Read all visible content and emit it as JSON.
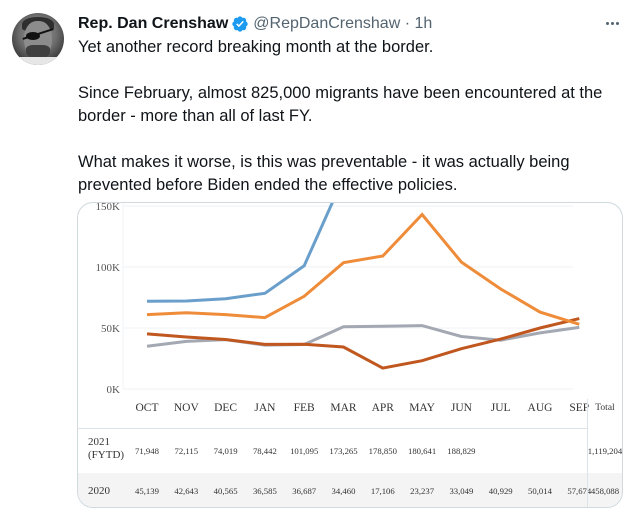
{
  "tweet": {
    "author_name": "Rep. Dan Crenshaw",
    "verified_icon": "verified-badge-icon",
    "handle": "@RepDanCrenshaw",
    "separator": "·",
    "time": "1h",
    "more_icon": "more-options-icon",
    "paragraphs": [
      "Yet another record breaking month at the border.",
      "Since February, almost 825,000 migrants have been encountered at the",
      "border - more than all of last FY.",
      "What makes it worse, is this was preventable - it was actually being",
      "prevented before Biden ended the effective policies."
    ]
  },
  "colors": {
    "verified": "#1d9bf0",
    "series_2021": "#6a9fcb",
    "series_orange": "#ee8c3a",
    "series_2020": "#c0571f",
    "series_gray": "#a3a8b3"
  },
  "chart_data": {
    "type": "line",
    "title": "",
    "xlabel": "",
    "ylabel": "",
    "categories": [
      "OCT",
      "NOV",
      "DEC",
      "JAN",
      "FEB",
      "MAR",
      "APR",
      "MAY",
      "JUN",
      "JUL",
      "AUG",
      "SEP"
    ],
    "y_ticks": [
      "0K",
      "50K",
      "100K",
      "150K"
    ],
    "y_tick_values": [
      0,
      50000,
      100000,
      150000
    ],
    "ylim": [
      0,
      150000
    ],
    "grid": true,
    "series": [
      {
        "name": "2021 (FYTD)",
        "color_key": "series_2021",
        "values": [
          71948,
          72115,
          74019,
          78442,
          101095,
          173265,
          178850,
          180641,
          188829,
          null,
          null,
          null
        ]
      },
      {
        "name": "Unlabeled orange series",
        "color_key": "series_orange",
        "values": [
          61000,
          62500,
          61000,
          58500,
          76000,
          103500,
          109000,
          143000,
          104000,
          82000,
          63000,
          53000
        ]
      },
      {
        "name": "2020",
        "color_key": "series_2020",
        "values": [
          45139,
          42643,
          40565,
          36585,
          36687,
          34460,
          17106,
          23237,
          33049,
          40929,
          50014,
          57674
        ]
      },
      {
        "name": "Unlabeled gray series",
        "color_key": "series_gray",
        "values": [
          35000,
          39000,
          40500,
          36000,
          36500,
          51000,
          51500,
          52000,
          43000,
          40000,
          46000,
          50500
        ]
      }
    ]
  },
  "table": {
    "total_header": "Total",
    "rows": [
      {
        "label_line1": "2021",
        "label_line2": "(FYTD)",
        "values": [
          "71,948",
          "72,115",
          "74,019",
          "78,442",
          "101,095",
          "173,265",
          "178,850",
          "180,641",
          "188,829",
          "",
          "",
          ""
        ],
        "total": "1,119,204"
      },
      {
        "label_line1": "2020",
        "label_line2": "",
        "values": [
          "45,139",
          "42,643",
          "40,565",
          "36,585",
          "36,687",
          "34,460",
          "17,106",
          "23,237",
          "33,049",
          "40,929",
          "50,014",
          "57,674"
        ],
        "total": "458,088"
      }
    ]
  }
}
